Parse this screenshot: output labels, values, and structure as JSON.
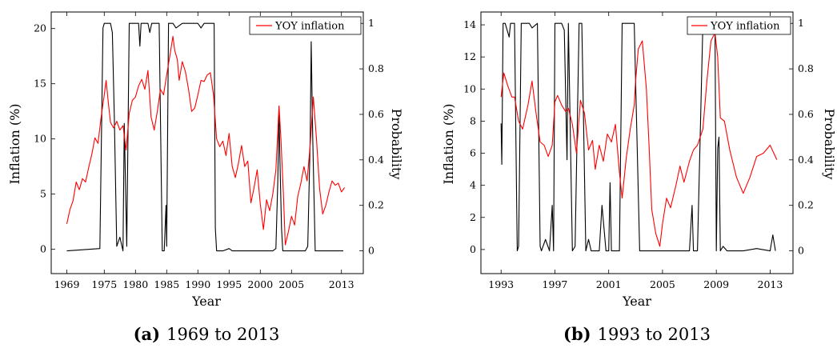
{
  "chart_data": [
    {
      "type": "line",
      "caption_label": "(a)",
      "caption_text": "1969 to 2013",
      "xlabel": "Year",
      "ylabel": "Inflation (%)",
      "y2label": "Probability",
      "xlim": [
        1966.5,
        2016.5
      ],
      "ylim": [
        -2.2,
        21.5
      ],
      "y2lim": [
        -0.1,
        1.05
      ],
      "xticks": [
        1969,
        1975,
        1980,
        1985,
        1990,
        1995,
        2000,
        2005,
        2013
      ],
      "yticks": [
        0,
        5,
        10,
        15,
        20
      ],
      "y2ticks": [
        0,
        0.2,
        0.4,
        0.6,
        0.8,
        1
      ],
      "legend": {
        "position": "top-right",
        "entries": [
          {
            "name": "YOY inflation",
            "color": "#ff0000"
          }
        ]
      },
      "series": [
        {
          "name": "YOY inflation",
          "axis": "left",
          "color": "#ff0000",
          "x": [
            1969.0,
            1969.5,
            1970.0,
            1970.5,
            1971.0,
            1971.5,
            1972.0,
            1972.5,
            1973.0,
            1973.5,
            1974.0,
            1974.5,
            1975.0,
            1975.3,
            1975.7,
            1976.0,
            1976.5,
            1977.0,
            1977.5,
            1978.0,
            1978.5,
            1979.0,
            1979.5,
            1980.0,
            1980.5,
            1981.0,
            1981.5,
            1982.0,
            1982.5,
            1983.0,
            1983.5,
            1984.0,
            1984.5,
            1985.0,
            1985.5,
            1986.0,
            1986.3,
            1986.7,
            1987.0,
            1987.5,
            1988.0,
            1988.5,
            1989.0,
            1989.5,
            1990.0,
            1990.5,
            1991.0,
            1991.5,
            1992.0,
            1992.5,
            1993.0,
            1993.5,
            1994.0,
            1994.5,
            1995.0,
            1995.5,
            1996.0,
            1996.5,
            1997.0,
            1997.5,
            1998.0,
            1998.5,
            1999.0,
            1999.5,
            2000.0,
            2000.5,
            2001.0,
            2001.5,
            2002.0,
            2002.5,
            2003.0,
            2003.3,
            2003.7,
            2004.0,
            2004.5,
            2005.0,
            2005.5,
            2006.0,
            2006.5,
            2007.0,
            2007.5,
            2008.0,
            2008.5,
            2009.0,
            2009.5,
            2010.0,
            2010.5,
            2011.0,
            2011.5,
            2012.0,
            2012.5,
            2013.0,
            2013.5
          ],
          "y": [
            2.3,
            3.6,
            4.4,
            6.1,
            5.4,
            6.4,
            6.1,
            7.4,
            8.6,
            10.1,
            9.6,
            12.0,
            14.0,
            15.3,
            13.0,
            11.5,
            11.0,
            11.6,
            10.8,
            11.2,
            9.0,
            12.3,
            13.5,
            13.8,
            14.8,
            15.4,
            14.5,
            16.2,
            12.0,
            10.8,
            12.5,
            14.5,
            14.0,
            15.8,
            17.5,
            19.3,
            18.0,
            17.2,
            15.3,
            17.0,
            16.1,
            14.5,
            12.5,
            12.8,
            14.0,
            15.3,
            15.2,
            15.8,
            16.0,
            14.0,
            10.0,
            9.3,
            9.8,
            8.5,
            10.5,
            7.5,
            6.5,
            7.8,
            9.4,
            7.5,
            8.0,
            4.2,
            5.6,
            7.2,
            4.1,
            1.8,
            4.5,
            3.5,
            5.0,
            7.2,
            13.0,
            10.1,
            5.0,
            0.4,
            1.6,
            3.0,
            2.2,
            4.8,
            6.0,
            7.5,
            6.2,
            9.5,
            13.8,
            10.0,
            5.5,
            3.2,
            4.0,
            5.2,
            6.2,
            5.8,
            6.0,
            5.2,
            5.6
          ]
        },
        {
          "name": "Probability",
          "axis": "right",
          "color": "#000000",
          "x": [
            1969.0,
            1974.3,
            1974.8,
            1975.0,
            1976.0,
            1976.3,
            1976.6,
            1977.0,
            1977.5,
            1978.0,
            1978.2,
            1978.6,
            1979.0,
            1979.2,
            1980.5,
            1980.7,
            1980.9,
            1982.0,
            1982.3,
            1982.6,
            1983.3,
            1983.8,
            1984.3,
            1984.6,
            1984.9,
            1985.0,
            1985.3,
            1986.0,
            1986.5,
            1987.0,
            1987.5,
            1989.0,
            1990.0,
            1990.5,
            1991.0,
            1992.0,
            1992.6,
            1992.8,
            1993.0,
            1993.2,
            1994.0,
            1995.0,
            1995.5,
            1996.0,
            1998.0,
            2000.0,
            2002.0,
            2002.5,
            2002.8,
            2003.0,
            2003.1,
            2003.4,
            2003.6,
            2004.0,
            2006.0,
            2007.2,
            2007.6,
            2008.0,
            2008.15,
            2008.4,
            2008.8,
            2009.0,
            2010.0,
            2011.0,
            2012.0,
            2013.3
          ],
          "y": [
            0,
            0.01,
            0.98,
            1.0,
            1.0,
            0.96,
            0.6,
            0.02,
            0.06,
            0.0,
            0.56,
            0.02,
            1.0,
            1.0,
            1.0,
            0.9,
            1.0,
            1.0,
            0.96,
            1.0,
            1.0,
            1.0,
            0.0,
            0.0,
            0.2,
            0.02,
            1.0,
            1.0,
            0.98,
            0.99,
            1.0,
            1.0,
            1.0,
            0.98,
            1.0,
            1.0,
            1.0,
            0.1,
            0.0,
            0.0,
            0.0,
            0.01,
            0.0,
            0.0,
            0.0,
            0.0,
            0.0,
            0.01,
            0.3,
            0.6,
            0.45,
            0.1,
            0.0,
            0.0,
            0.0,
            0.0,
            0.02,
            0.5,
            0.92,
            0.5,
            0.0,
            0.0,
            0.0,
            0.0,
            0.0,
            0.0
          ]
        }
      ]
    },
    {
      "type": "line",
      "caption_label": "(b)",
      "caption_text": "1993 to 2013",
      "xlabel": "Year",
      "ylabel": "Inflation (%)",
      "y2label": "Probability",
      "xlim": [
        1991.5,
        2014.7
      ],
      "ylim": [
        -1.5,
        14.8
      ],
      "y2lim": [
        -0.1,
        1.05
      ],
      "xticks": [
        1993,
        1997,
        2001,
        2005,
        2009,
        2013
      ],
      "yticks": [
        0,
        2,
        4,
        6,
        8,
        10,
        12,
        14
      ],
      "y2ticks": [
        0,
        0.2,
        0.4,
        0.6,
        0.8,
        1
      ],
      "legend": {
        "position": "top-right",
        "entries": [
          {
            "name": "YOY inflation",
            "color": "#ff0000"
          }
        ]
      },
      "series": [
        {
          "name": "YOY inflation",
          "axis": "left",
          "color": "#ff0000",
          "x": [
            1993.0,
            1993.2,
            1993.5,
            1993.8,
            1994.0,
            1994.3,
            1994.6,
            1995.0,
            1995.3,
            1995.6,
            1995.9,
            1996.2,
            1996.5,
            1996.8,
            1997.0,
            1997.2,
            1997.5,
            1997.8,
            1998.0,
            1998.3,
            1998.6,
            1998.9,
            1999.2,
            1999.5,
            1999.8,
            2000.0,
            2000.3,
            2000.6,
            2000.9,
            2001.2,
            2001.5,
            2001.8,
            2002.0,
            2002.3,
            2002.6,
            2002.9,
            2003.0,
            2003.2,
            2003.5,
            2003.8,
            2004.0,
            2004.2,
            2004.5,
            2004.8,
            2005.0,
            2005.3,
            2005.6,
            2006.0,
            2006.3,
            2006.6,
            2007.0,
            2007.3,
            2007.6,
            2008.0,
            2008.3,
            2008.6,
            2008.9,
            2009.1,
            2009.3,
            2009.6,
            2010.0,
            2010.5,
            2011.0,
            2011.5,
            2012.0,
            2012.5,
            2013.0,
            2013.5
          ],
          "y": [
            9.5,
            11.0,
            10.2,
            9.5,
            9.5,
            8.0,
            7.5,
            9.0,
            10.5,
            8.5,
            6.7,
            6.5,
            5.8,
            6.5,
            9.2,
            9.6,
            9.0,
            8.6,
            8.8,
            7.8,
            6.0,
            9.3,
            8.5,
            6.2,
            6.8,
            5.0,
            6.5,
            5.5,
            7.2,
            6.7,
            7.8,
            4.8,
            3.2,
            5.7,
            7.5,
            9.0,
            10.5,
            12.5,
            13.0,
            10.0,
            6.5,
            2.5,
            1.0,
            0.2,
            1.6,
            3.2,
            2.6,
            4.0,
            5.2,
            4.2,
            5.5,
            6.2,
            6.5,
            7.5,
            10.5,
            13.0,
            13.5,
            12.0,
            8.2,
            8.0,
            6.2,
            4.5,
            3.5,
            4.5,
            5.8,
            6.0,
            6.5,
            5.6
          ]
        },
        {
          "name": "Probability",
          "axis": "right",
          "color": "#000000",
          "x": [
            1993.0,
            1993.05,
            1993.15,
            1993.3,
            1993.6,
            1993.7,
            1993.8,
            1994.0,
            1994.2,
            1994.3,
            1994.5,
            1994.9,
            1995.1,
            1995.3,
            1995.7,
            1995.9,
            1996.0,
            1996.3,
            1996.6,
            1996.8,
            1996.9,
            1997.0,
            1997.5,
            1997.7,
            1997.9,
            1998.0,
            1998.3,
            1998.5,
            1998.8,
            1999.0,
            1999.3,
            1999.5,
            1999.7,
            2000.0,
            2000.3,
            2000.5,
            2000.8,
            2001.0,
            2001.1,
            2001.2,
            2001.8,
            2002.0,
            2002.7,
            2002.9,
            2003.3,
            2003.5,
            2003.6,
            2004.0,
            2007.0,
            2007.2,
            2007.3,
            2007.6,
            2008.0,
            2008.3,
            2008.6,
            2008.9,
            2009.0,
            2009.1,
            2009.2,
            2009.3,
            2009.5,
            2009.8,
            2010.0,
            2011.0,
            2012.0,
            2013.0,
            2013.2,
            2013.4
          ],
          "y": [
            0.56,
            0.38,
            1.0,
            1.0,
            0.94,
            1.0,
            1.0,
            1.0,
            0.0,
            0.02,
            1.0,
            1.0,
            1.0,
            0.98,
            1.0,
            0.02,
            0.0,
            0.05,
            0.0,
            0.2,
            0.0,
            1.0,
            1.0,
            0.97,
            0.4,
            1.0,
            0.0,
            0.02,
            1.0,
            1.0,
            0.0,
            0.05,
            0.0,
            0.0,
            0.0,
            0.2,
            0.0,
            0.0,
            0.3,
            0.0,
            0.0,
            1.0,
            1.0,
            1.0,
            0.0,
            0.0,
            0.0,
            0.0,
            0.0,
            0.2,
            0.0,
            0.0,
            1.0,
            1.0,
            1.0,
            1.0,
            0.0,
            0.45,
            0.5,
            0.0,
            0.02,
            0.0,
            0.0,
            0.0,
            0.01,
            0.0,
            0.07,
            0.0
          ]
        }
      ]
    }
  ]
}
